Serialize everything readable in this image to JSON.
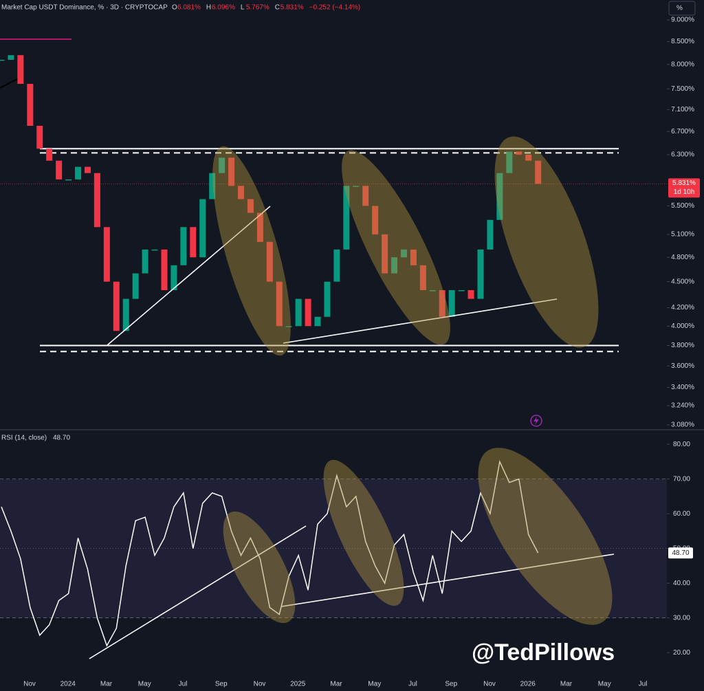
{
  "header": {
    "title": "Market Cap USDT Dominance, % · 3D · CRYPTOCAP",
    "stats": [
      {
        "key": "O",
        "text": "6.081%"
      },
      {
        "key": "H",
        "text": "6.096%"
      },
      {
        "key": "L",
        "text": "5.767%"
      },
      {
        "key": "C",
        "text": "5.831%"
      }
    ],
    "change": "−0.252 (−4.14%)",
    "scale_button": "%"
  },
  "watermark": "@TedPillows",
  "time_labels": [
    "Nov",
    "2024",
    "Mar",
    "May",
    "Jul",
    "Sep",
    "Nov",
    "2025",
    "Mar",
    "May",
    "Jul",
    "Sep",
    "Nov",
    "2026",
    "Mar",
    "May",
    "Jul"
  ],
  "chart_data": [
    {
      "type": "candlestick",
      "log_scale": true,
      "up_color": "#089981",
      "down_color": "#f23645",
      "values": [
        8.1,
        8.2,
        7.6,
        6.8,
        6.4,
        6.2,
        5.9,
        5.9,
        6.1,
        6.0,
        5.2,
        4.5,
        3.95,
        4.3,
        4.6,
        4.9,
        4.9,
        4.4,
        4.7,
        5.2,
        4.8,
        5.6,
        6.0,
        6.25,
        5.8,
        5.6,
        5.4,
        5.0,
        4.5,
        4.0,
        4.0,
        4.3,
        4.0,
        4.1,
        4.5,
        4.9,
        5.8,
        5.8,
        5.5,
        5.1,
        4.6,
        4.8,
        4.9,
        4.7,
        4.4,
        4.4,
        4.1,
        4.4,
        4.4,
        4.3,
        4.9,
        5.3,
        6.0,
        6.35,
        6.3,
        6.2,
        5.831
      ],
      "ylim": [
        3.04,
        9.49
      ],
      "yticks": [
        {
          "value": 3.08,
          "label": "3.080%"
        },
        {
          "value": 3.24,
          "label": "3.240%"
        },
        {
          "value": 3.4,
          "label": "3.400%"
        },
        {
          "value": 3.6,
          "label": "3.600%"
        },
        {
          "value": 3.8,
          "label": "3.800%"
        },
        {
          "value": 4.0,
          "label": "4.000%"
        },
        {
          "value": 4.2,
          "label": "4.200%"
        },
        {
          "value": 4.5,
          "label": "4.500%"
        },
        {
          "value": 4.8,
          "label": "4.800%"
        },
        {
          "value": 5.1,
          "label": "5.100%"
        },
        {
          "value": 5.5,
          "label": "5.500%"
        },
        {
          "value": 6.3,
          "label": "6.300%"
        },
        {
          "value": 6.7,
          "label": "6.700%"
        },
        {
          "value": 7.1,
          "label": "7.100%"
        },
        {
          "value": 7.5,
          "label": "7.500%"
        },
        {
          "value": 8.0,
          "label": "8.000%"
        },
        {
          "value": 8.5,
          "label": "8.500%"
        },
        {
          "value": 9.0,
          "label": "9.000%"
        }
      ],
      "levels": [
        6.4,
        6.33,
        3.8,
        3.74
      ],
      "last_label": "5.831%",
      "countdown": "1d 10h"
    },
    {
      "type": "line",
      "title": "RSI (14, close)",
      "color": "#ffffff",
      "values": [
        62,
        55,
        47,
        33,
        25,
        28,
        35,
        37,
        53,
        44,
        30,
        22,
        27,
        45,
        58,
        59,
        48,
        53,
        62,
        66,
        50,
        63,
        66,
        65,
        55,
        48,
        53,
        47,
        33,
        31,
        42,
        48,
        38,
        57,
        60,
        71,
        62,
        65,
        52,
        45,
        40,
        51,
        54,
        43,
        35,
        48,
        37,
        55,
        52,
        55,
        66,
        60,
        75,
        69,
        70,
        54,
        48.7
      ],
      "value_labels": {
        "56": "48.70"
      },
      "ylim": [
        12.9,
        83.6
      ],
      "yticks": [
        {
          "value": 20,
          "label": "20.00"
        },
        {
          "value": 30,
          "label": "30.00"
        },
        {
          "value": 40,
          "label": "40.00"
        },
        {
          "value": 50,
          "label": "50.00"
        },
        {
          "value": 60,
          "label": "60.00"
        },
        {
          "value": 70,
          "label": "70.00"
        },
        {
          "value": 80,
          "label": "80.00"
        }
      ],
      "levels": [
        70,
        50,
        30
      ]
    }
  ]
}
